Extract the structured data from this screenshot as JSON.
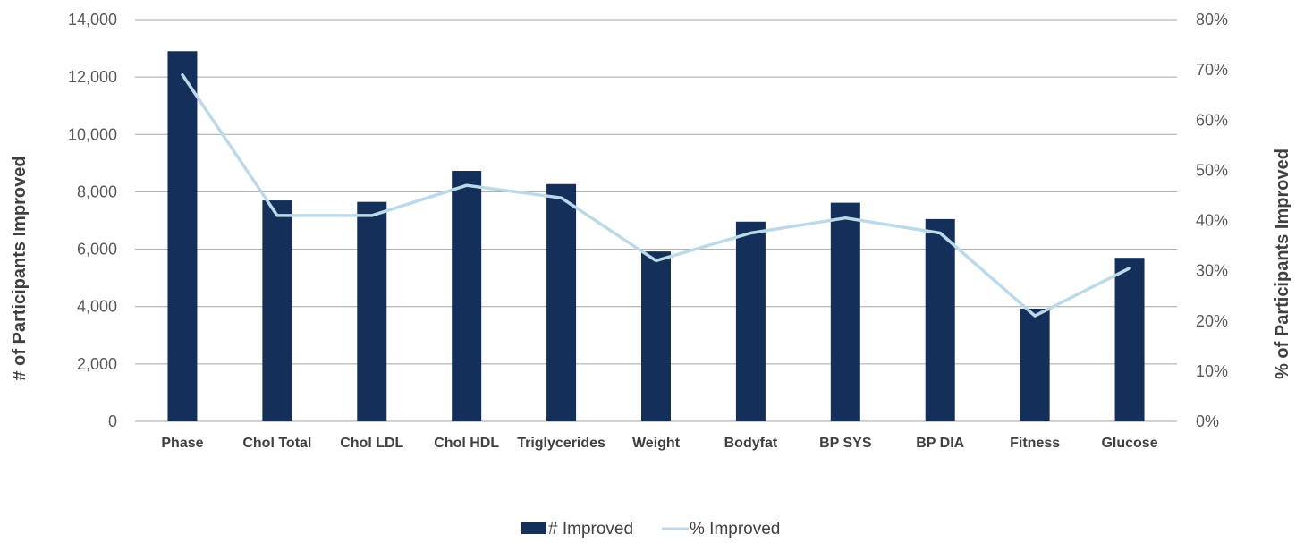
{
  "chart_data": {
    "type": "bar",
    "categories": [
      "Phase",
      "Chol Total",
      "Chol LDL",
      "Chol HDL",
      "Triglycerides",
      "Weight",
      "Bodyfat",
      "BP SYS",
      "BP DIA",
      "Fitness",
      "Glucose"
    ],
    "series": [
      {
        "name": "# Improved",
        "type": "bar",
        "axis": "left",
        "color": "#14305a",
        "values": [
          12900,
          7700,
          7650,
          8730,
          8270,
          5920,
          6960,
          7620,
          7050,
          3930,
          5700
        ]
      },
      {
        "name": "% Improved",
        "type": "line",
        "axis": "right",
        "color": "#bcd9ea",
        "values": [
          0.69,
          0.41,
          0.41,
          0.47,
          0.445,
          0.32,
          0.375,
          0.405,
          0.375,
          0.21,
          0.305
        ]
      }
    ],
    "ylabel": "# of Participants Improved",
    "ylabel_right": "% of Participants Improved",
    "ylim": [
      0,
      14000
    ],
    "ylim_right": [
      0,
      0.8
    ],
    "y_ticks": [
      "0",
      "2,000",
      "4,000",
      "6,000",
      "8,000",
      "10,000",
      "12,000",
      "14,000"
    ],
    "y_ticks_right": [
      "0%",
      "10%",
      "20%",
      "30%",
      "40%",
      "50%",
      "60%",
      "70%",
      "80%"
    ],
    "grid": true,
    "legend": "bottom-center"
  }
}
